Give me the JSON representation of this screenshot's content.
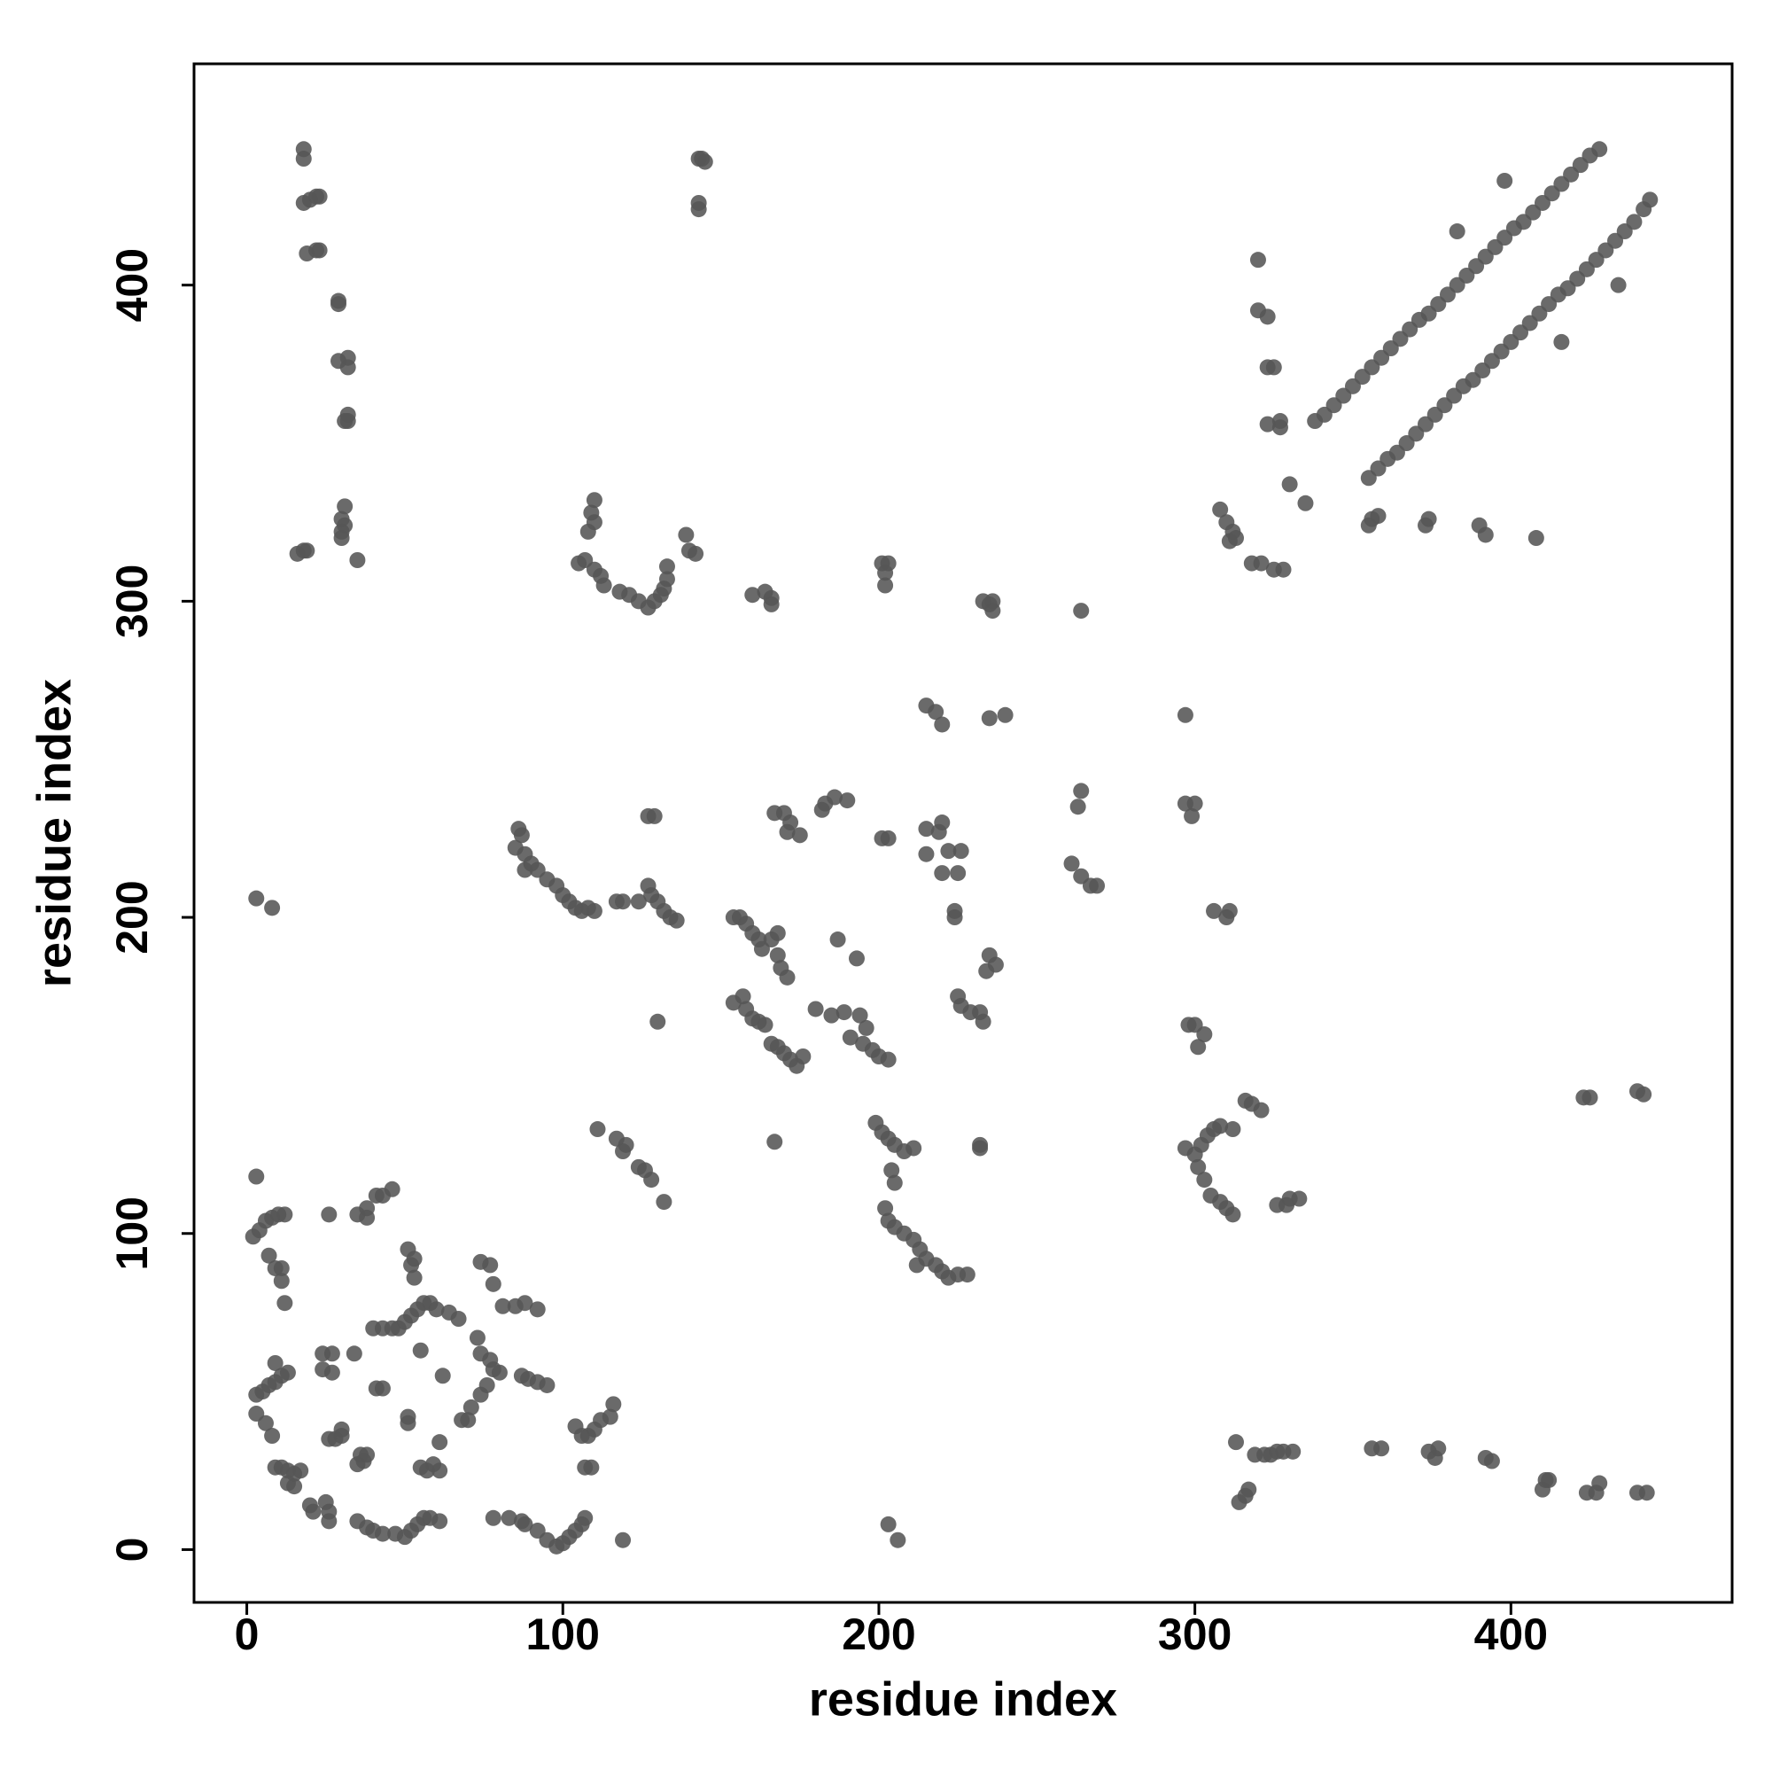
{
  "chart_data": {
    "type": "scatter",
    "xlabel": "residue index",
    "ylabel": "residue index",
    "xlim": [
      -16.7,
      470
    ],
    "ylim": [
      -16.7,
      470
    ],
    "xticks": [
      0,
      100,
      200,
      300,
      400
    ],
    "yticks": [
      0,
      100,
      200,
      300,
      400
    ],
    "series": [
      {
        "color": "#555555",
        "x": [
          18,
          18,
          18,
          20,
          22,
          23,
          19,
          22,
          23,
          29,
          29,
          29,
          32,
          32,
          32,
          32,
          31,
          31,
          30,
          31,
          30,
          30,
          35,
          16,
          18,
          19,
          143,
          145,
          144,
          143,
          143,
          338,
          341,
          344,
          347,
          350,
          353,
          356,
          359,
          362,
          365,
          368,
          371,
          374,
          377,
          380,
          383,
          386,
          389,
          392,
          395,
          398,
          401,
          404,
          407,
          410,
          413,
          416,
          419,
          422,
          425,
          428,
          355,
          358,
          361,
          364,
          367,
          370,
          373,
          376,
          379,
          382,
          385,
          388,
          391,
          394,
          397,
          400,
          403,
          406,
          409,
          412,
          415,
          418,
          421,
          424,
          427,
          430,
          433,
          436,
          439,
          442,
          444,
          398,
          383,
          320,
          320,
          323,
          323,
          325,
          323,
          327,
          327,
          330,
          335,
          416,
          434,
          356,
          358,
          355,
          373,
          374,
          390,
          392,
          408,
          308,
          310,
          312,
          311,
          313,
          318,
          321,
          325,
          328,
          110,
          109,
          110,
          108,
          105,
          107,
          110,
          112,
          113,
          118,
          121,
          124,
          127,
          129,
          131,
          132,
          133,
          133,
          139,
          140,
          142,
          160,
          164,
          166,
          166,
          201,
          203,
          202,
          202,
          233,
          235,
          236,
          236,
          264,
          215,
          218,
          220,
          235,
          240,
          297,
          264,
          263,
          297,
          300,
          299,
          183,
          186,
          190,
          182,
          167,
          170,
          172,
          171,
          175,
          203,
          201,
          215,
          220,
          219,
          222,
          226,
          215,
          220,
          225,
          261,
          264,
          267,
          269,
          85,
          87,
          86,
          88,
          90,
          88,
          92,
          95,
          98,
          100,
          102,
          104,
          106,
          108,
          110,
          117,
          119,
          124,
          127,
          128,
          130,
          132,
          134,
          136,
          127,
          129,
          3,
          8,
          224,
          224,
          311,
          310,
          306,
          154,
          156,
          158,
          160,
          162,
          163,
          166,
          168,
          168,
          169,
          171,
          187,
          193,
          235,
          237,
          234,
          154,
          157,
          158,
          160,
          162,
          164,
          225,
          226,
          229,
          232,
          233,
          180,
          185,
          189,
          194,
          196,
          191,
          195,
          198,
          200,
          203,
          166,
          168,
          170,
          172,
          174,
          176,
          298,
          300,
          303,
          301,
          130,
          199,
          201,
          203,
          205,
          208,
          211,
          204,
          205,
          167,
          111,
          117,
          120,
          119,
          124,
          126,
          128,
          132,
          232,
          232,
          297,
          300,
          302,
          304,
          306,
          308,
          312,
          301,
          303,
          305,
          308,
          310,
          312,
          316,
          318,
          321,
          326,
          329,
          333,
          330,
          202,
          203,
          205,
          208,
          211,
          213,
          215,
          218,
          220,
          222,
          225,
          228,
          212,
          423,
          425,
          440,
          442,
          3,
          2,
          4,
          6,
          8,
          10,
          12,
          7,
          9,
          11,
          11,
          12,
          26,
          35,
          38,
          38,
          41,
          43,
          46,
          51,
          53,
          52,
          53,
          48,
          50,
          52,
          54,
          56,
          58,
          60,
          64,
          67,
          40,
          43,
          46,
          55,
          74,
          77,
          78,
          81,
          85,
          88,
          92,
          87,
          89,
          92,
          95,
          73,
          74,
          77,
          78,
          80,
          76,
          74,
          71,
          70,
          68,
          3,
          5,
          7,
          9,
          11,
          13,
          9,
          3,
          6,
          8,
          24,
          27,
          24,
          27,
          34,
          41,
          43,
          51,
          51,
          62,
          61,
          55,
          57,
          59,
          61,
          9,
          11,
          13,
          15,
          17,
          13,
          15,
          26,
          28,
          30,
          30,
          37,
          35,
          36,
          38,
          20,
          21,
          25,
          26,
          26,
          35,
          38,
          40,
          43,
          47,
          50,
          52,
          54,
          56,
          58,
          61,
          78,
          83,
          87,
          88,
          92,
          95,
          98,
          100,
          102,
          104,
          106,
          107,
          104,
          106,
          108,
          110,
          112,
          115,
          116,
          107,
          109,
          119,
          203,
          206,
          313,
          314,
          316,
          317,
          319,
          322,
          324,
          326,
          328,
          331,
          356,
          359,
          374,
          377,
          376,
          392,
          394,
          410,
          411,
          412,
          424,
          427,
          428,
          440,
          443
        ],
        "values": [
          440,
          443,
          426,
          427,
          428,
          428,
          410,
          411,
          411,
          394,
          395,
          376,
          377,
          374,
          359,
          357,
          357,
          330,
          326,
          324,
          320,
          322,
          313,
          315,
          316,
          316,
          440,
          439,
          440,
          426,
          424,
          357,
          359,
          362,
          365,
          368,
          371,
          374,
          377,
          380,
          383,
          386,
          389,
          391,
          394,
          397,
          400,
          403,
          406,
          409,
          412,
          415,
          418,
          420,
          423,
          426,
          429,
          432,
          435,
          438,
          441,
          443,
          339,
          342,
          345,
          347,
          350,
          353,
          356,
          359,
          362,
          365,
          368,
          370,
          373,
          376,
          379,
          382,
          385,
          388,
          391,
          394,
          397,
          399,
          402,
          405,
          408,
          411,
          414,
          417,
          420,
          424,
          427,
          433,
          417,
          408,
          392,
          390,
          374,
          374,
          356,
          357,
          355,
          337,
          331,
          382,
          400,
          326,
          327,
          324,
          324,
          326,
          324,
          321,
          320,
          329,
          325,
          322,
          319,
          320,
          312,
          312,
          310,
          310,
          332,
          328,
          325,
          322,
          312,
          313,
          310,
          308,
          305,
          303,
          302,
          300,
          298,
          300,
          302,
          304,
          307,
          311,
          321,
          316,
          315,
          302,
          303,
          301,
          299,
          312,
          312,
          309,
          305,
          300,
          299,
          297,
          300,
          297,
          267,
          265,
          261,
          263,
          264,
          264,
          240,
          235,
          236,
          236,
          232,
          236,
          238,
          237,
          234,
          233,
          233,
          230,
          227,
          226,
          225,
          225,
          228,
          230,
          227,
          221,
          221,
          220,
          214,
          214,
          217,
          213,
          210,
          210,
          222,
          226,
          228,
          220,
          217,
          215,
          215,
          212,
          210,
          207,
          205,
          203,
          202,
          203,
          202,
          205,
          205,
          205,
          210,
          207,
          205,
          202,
          200,
          199,
          232,
          232,
          206,
          203,
          202,
          200,
          202,
          200,
          202,
          200,
          200,
          198,
          195,
          193,
          190,
          193,
          195,
          188,
          184,
          181,
          193,
          187,
          188,
          185,
          183,
          173,
          175,
          171,
          168,
          167,
          166,
          175,
          172,
          170,
          170,
          167,
          171,
          169,
          170,
          169,
          165,
          162,
          160,
          158,
          156,
          155,
          160,
          159,
          157,
          155,
          153,
          156,
          166,
          166,
          163,
          159,
          167,
          135,
          132,
          130,
          128,
          126,
          127,
          120,
          116,
          129,
          133,
          130,
          128,
          126,
          121,
          120,
          117,
          110,
          128,
          127,
          127,
          125,
          128,
          131,
          133,
          134,
          133,
          121,
          117,
          112,
          110,
          108,
          106,
          142,
          141,
          139,
          109,
          109,
          111,
          111,
          108,
          104,
          102,
          100,
          98,
          95,
          92,
          90,
          88,
          86,
          87,
          87,
          90,
          143,
          143,
          145,
          144,
          118,
          99,
          101,
          104,
          105,
          106,
          106,
          93,
          89,
          89,
          85,
          78,
          106,
          106,
          105,
          108,
          112,
          112,
          114,
          95,
          92,
          90,
          86,
          70,
          72,
          74,
          76,
          78,
          78,
          76,
          75,
          73,
          70,
          70,
          70,
          63,
          91,
          90,
          84,
          77,
          77,
          78,
          76,
          55,
          54,
          53,
          52,
          67,
          62,
          60,
          57,
          56,
          52,
          49,
          45,
          41,
          41,
          49,
          50,
          52,
          53,
          55,
          56,
          59,
          43,
          40,
          36,
          62,
          62,
          57,
          56,
          62,
          51,
          51,
          42,
          40,
          55,
          34,
          26,
          25,
          27,
          25,
          26,
          26,
          25,
          24,
          25,
          21,
          20,
          35,
          35,
          36,
          38,
          28,
          27,
          30,
          30,
          14,
          12,
          15,
          12,
          9,
          9,
          7,
          6,
          5,
          5,
          4,
          6,
          8,
          10,
          10,
          9,
          10,
          10,
          9,
          8,
          6,
          3,
          1,
          2,
          4,
          6,
          8,
          10,
          39,
          36,
          36,
          38,
          41,
          42,
          46,
          26,
          26,
          3,
          8,
          3,
          34,
          15,
          17,
          19,
          30,
          30,
          30,
          31,
          31,
          31,
          32,
          32,
          31,
          32,
          29,
          29,
          28,
          19,
          22,
          22,
          18,
          18,
          21,
          18,
          18
        ]
      }
    ]
  }
}
